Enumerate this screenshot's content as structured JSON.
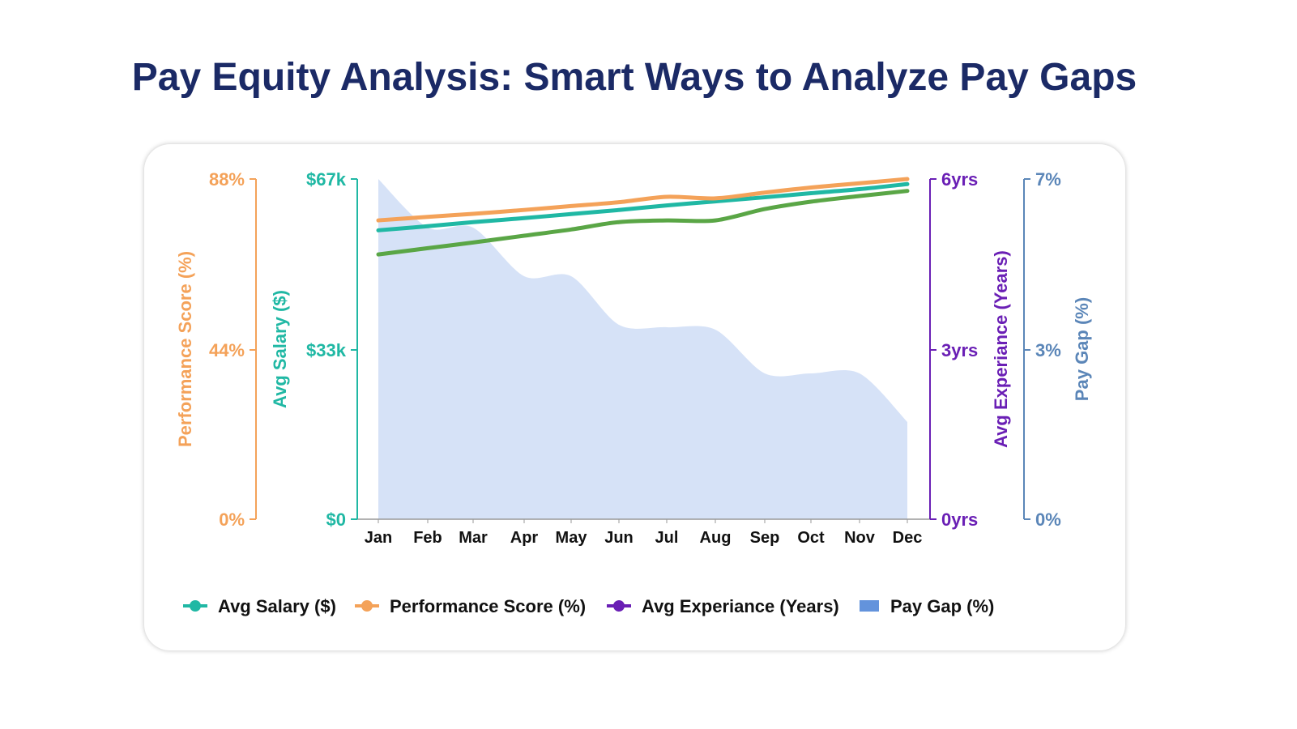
{
  "chart_data": {
    "type": "line",
    "title": "Pay Equity Analysis: Smart Ways to Analyze Pay Gaps",
    "categories": [
      "Jan",
      "Feb",
      "Mar",
      "Apr",
      "May",
      "Jun",
      "Jul",
      "Aug",
      "Sep",
      "Oct",
      "Nov",
      "Dec"
    ],
    "axes": {
      "performance": {
        "label": "Performance Score (%)",
        "ticks": [
          "0%",
          "44%",
          "88%"
        ],
        "range": [
          0,
          88
        ],
        "color": "#f4a259"
      },
      "salary": {
        "label": "Avg Salary ($)",
        "ticks": [
          "$0",
          "$33k",
          "$67k"
        ],
        "range": [
          0,
          67
        ],
        "color": "#20b8a4"
      },
      "experience": {
        "label": "Avg Experiance (Years)",
        "ticks": [
          "0yrs",
          "3yrs",
          "6yrs"
        ],
        "range": [
          0,
          6
        ],
        "color": "#6a1fb5"
      },
      "paygap": {
        "label": "Pay Gap (%)",
        "ticks": [
          "0%",
          "3%",
          "7%"
        ],
        "range": [
          0,
          7
        ],
        "color": "#5b86b8"
      }
    },
    "series": [
      {
        "name": "Pay Gap (%)",
        "axis": "paygap",
        "kind": "area",
        "color": "#d6e2f7",
        "legend_color": "#6393dc",
        "values": [
          7,
          6,
          6,
          5,
          5,
          4,
          3.95,
          3.9,
          3,
          3,
          3,
          2
        ]
      },
      {
        "name": "Avg Salary ($)",
        "axis": "salary",
        "kind": "line",
        "color": "#20b8a4",
        "values": [
          56.9,
          57.7,
          58.5,
          59.3,
          60.1,
          60.9,
          61.8,
          62.6,
          63.4,
          64.2,
          65.0,
          66.0
        ]
      },
      {
        "name": "Performance Score (%)",
        "axis": "performance",
        "kind": "line",
        "color": "#f4a259",
        "values": [
          77.3,
          78.2,
          79.0,
          80.0,
          81.0,
          82.0,
          83.4,
          83.0,
          84.5,
          85.8,
          86.9,
          88.0
        ]
      },
      {
        "name": "Avg Experiance (Years)",
        "axis": "experience",
        "kind": "line",
        "color": "#5aa646",
        "legend_color": "#6a1fb5",
        "values": [
          4.67,
          4.78,
          4.88,
          5.0,
          5.11,
          5.24,
          5.27,
          5.27,
          5.47,
          5.6,
          5.7,
          5.79
        ]
      }
    ],
    "legend": "bottom",
    "grid": false
  }
}
